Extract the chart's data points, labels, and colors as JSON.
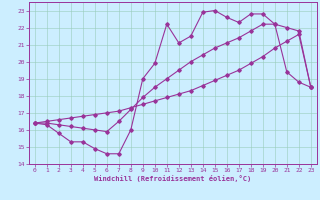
{
  "background_color": "#cceeff",
  "grid_color": "#99ccbb",
  "line_color": "#993399",
  "xlabel": "Windchill (Refroidissement éolien,°C)",
  "marker": "D",
  "markersize": 1.8,
  "linewidth": 0.8,
  "xlim": [
    -0.5,
    23.5
  ],
  "ylim": [
    14,
    23.5
  ],
  "xticks": [
    0,
    1,
    2,
    3,
    4,
    5,
    6,
    7,
    8,
    9,
    10,
    11,
    12,
    13,
    14,
    15,
    16,
    17,
    18,
    19,
    20,
    21,
    22,
    23
  ],
  "yticks": [
    14,
    15,
    16,
    17,
    18,
    19,
    20,
    21,
    22,
    23
  ],
  "line1_x": [
    0,
    1,
    2,
    3,
    4,
    5,
    6,
    7,
    8,
    9,
    10,
    11,
    12,
    13,
    14,
    15,
    16,
    17,
    18,
    19,
    20,
    21,
    22,
    23
  ],
  "line1_y": [
    16.4,
    16.3,
    15.8,
    15.3,
    15.3,
    14.9,
    14.6,
    14.6,
    16.0,
    19.0,
    19.9,
    22.2,
    21.1,
    21.5,
    22.9,
    23.0,
    22.6,
    22.3,
    22.8,
    22.8,
    22.2,
    19.4,
    18.8,
    18.5
  ],
  "line2_x": [
    0,
    1,
    2,
    3,
    4,
    5,
    6,
    7,
    8,
    9,
    10,
    11,
    12,
    13,
    14,
    15,
    16,
    17,
    18,
    19,
    20,
    21,
    22,
    23
  ],
  "line2_y": [
    16.4,
    16.5,
    16.6,
    16.7,
    16.8,
    16.9,
    17.0,
    17.1,
    17.3,
    17.5,
    17.7,
    17.9,
    18.1,
    18.3,
    18.6,
    18.9,
    19.2,
    19.5,
    19.9,
    20.3,
    20.8,
    21.2,
    21.6,
    18.5
  ],
  "line3_x": [
    0,
    1,
    2,
    3,
    4,
    5,
    6,
    7,
    8,
    9,
    10,
    11,
    12,
    13,
    14,
    15,
    16,
    17,
    18,
    19,
    20,
    21,
    22,
    23
  ],
  "line3_y": [
    16.4,
    16.4,
    16.3,
    16.2,
    16.1,
    16.0,
    15.9,
    16.5,
    17.2,
    17.9,
    18.5,
    19.0,
    19.5,
    20.0,
    20.4,
    20.8,
    21.1,
    21.4,
    21.8,
    22.2,
    22.2,
    22.0,
    21.8,
    18.5
  ],
  "xlabel_fontsize": 5.0,
  "tick_fontsize": 4.5
}
